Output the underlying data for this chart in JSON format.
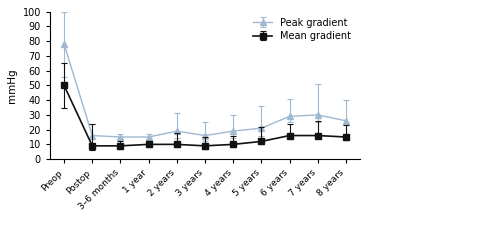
{
  "x_labels": [
    "Preop",
    "Postop",
    "3–6 months",
    "1 year",
    "2 years",
    "3 years",
    "4 years",
    "5 years",
    "6 years",
    "7 years",
    "8 years"
  ],
  "peak_mean": [
    78,
    16,
    15,
    15,
    19,
    16,
    19,
    21,
    29,
    30,
    26
  ],
  "peak_err_upper": [
    22,
    8,
    2,
    2,
    12,
    9,
    11,
    15,
    12,
    21,
    14
  ],
  "peak_err_lower": [
    22,
    8,
    2,
    2,
    5,
    4,
    5,
    5,
    4,
    5,
    2
  ],
  "mean_mean": [
    50,
    9,
    9,
    10,
    10,
    9,
    10,
    12,
    16,
    16,
    15
  ],
  "mean_err_upper": [
    15,
    15,
    3,
    2,
    8,
    6,
    6,
    10,
    8,
    10,
    8
  ],
  "mean_err_lower": [
    15,
    3,
    2,
    2,
    2,
    2,
    2,
    2,
    2,
    2,
    2
  ],
  "peak_color": "#a0b8d0",
  "mean_color": "#111111",
  "ylabel": "mmHg",
  "ylim": [
    0,
    100
  ],
  "yticks": [
    0,
    10,
    20,
    30,
    40,
    50,
    60,
    70,
    80,
    90,
    100
  ],
  "peak_label": "Peak gradient",
  "mean_label": "Mean gradient"
}
